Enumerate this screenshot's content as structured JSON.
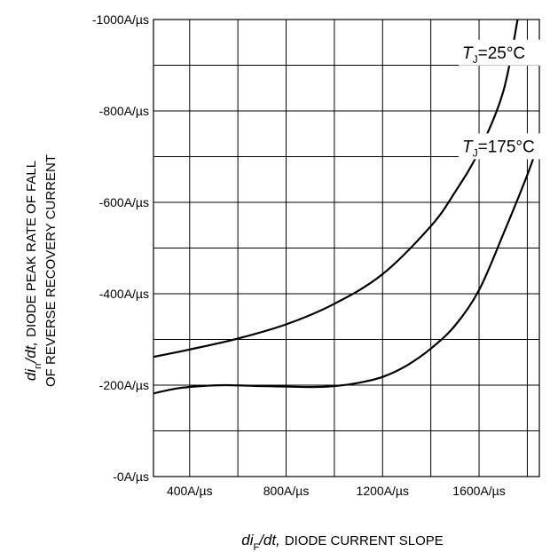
{
  "chart_data": {
    "type": "line",
    "xlabel": {
      "var": "di",
      "sub": "F",
      "rest": "/dt,",
      "desc": "DIODE CURRENT SLOPE"
    },
    "ylabel": {
      "var": "di",
      "sub": "rr",
      "rest": "/dt,",
      "line1": "DIODE PEAK RATE OF FALL",
      "line2": "OF REVERSE RECOVERY CURRENT"
    },
    "xlim": [
      250,
      1850
    ],
    "ylim": [
      0,
      -1000
    ],
    "x_ticks": [
      {
        "value": 400,
        "label": "400A/µs"
      },
      {
        "value": 800,
        "label": "800A/µs"
      },
      {
        "value": 1200,
        "label": "1200A/µs"
      },
      {
        "value": 1600,
        "label": "1600A/µs"
      }
    ],
    "y_ticks": [
      {
        "value": 0,
        "label": "-0A/µs"
      },
      {
        "value": -200,
        "label": "-200A/µs"
      },
      {
        "value": -400,
        "label": "-400A/µs"
      },
      {
        "value": -600,
        "label": "-600A/µs"
      },
      {
        "value": -800,
        "label": "-800A/µs"
      },
      {
        "value": -1000,
        "label": "-1000A/µs"
      }
    ],
    "grid": true,
    "grid_x_step": 200,
    "grid_y_step": 100,
    "series": [
      {
        "name": "TJ=25°C",
        "label_var": "T",
        "label_sub": "J",
        "label_rest": "=25°C",
        "x": [
          250,
          400,
          600,
          800,
          1000,
          1200,
          1400,
          1500,
          1600,
          1700,
          1760
        ],
        "y": [
          -262,
          -278,
          -302,
          -333,
          -378,
          -443,
          -548,
          -622,
          -712,
          -842,
          -1000
        ]
      },
      {
        "name": "TJ=175°C",
        "label_var": "T",
        "label_sub": "J",
        "label_rest": "=175°C",
        "x": [
          250,
          350,
          450,
          550,
          700,
          900,
          1000,
          1100,
          1200,
          1300,
          1400,
          1500,
          1600,
          1700,
          1800,
          1850
        ],
        "y": [
          -182,
          -193,
          -198,
          -200,
          -198,
          -196,
          -198,
          -205,
          -218,
          -243,
          -280,
          -330,
          -408,
          -530,
          -660,
          -735
        ]
      }
    ],
    "annotations": [
      {
        "series": 0,
        "x": 1530,
        "y": -915
      },
      {
        "series": 1,
        "x": 1530,
        "y": -710
      }
    ]
  }
}
